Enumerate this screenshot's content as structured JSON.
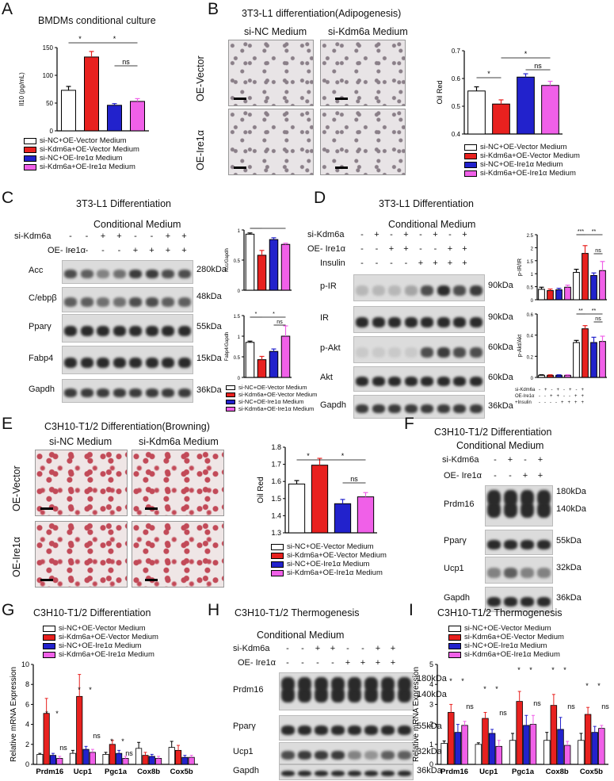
{
  "colors": {
    "white": "#ffffff",
    "red": "#e8211f",
    "blue": "#2222cc",
    "pink": "#f060e8"
  },
  "groups": [
    "si-NC+OE-Vector Medium",
    "si-Kdm6a+OE-Vector Medium",
    "si-NC+OE-Ire1α Medium",
    "si-Kdm6a+OE-Ire1α Medium"
  ],
  "panelA": {
    "letter": "A",
    "title": "BMDMs conditional culture",
    "ylabel": "Il10 (pg/mL)",
    "sig": [
      "*",
      "*",
      "ns"
    ]
  },
  "panelB": {
    "letter": "B",
    "title": "3T3-L1 differentiation(Adipogenesis)",
    "col1": "si-NC Medium",
    "col2": "si-Kdm6a Medium",
    "row1": "OE-Vector",
    "row2": "OE-Ire1α",
    "ylabel": "Oil Red",
    "sig": [
      "*",
      "*",
      "ns"
    ]
  },
  "panelC": {
    "letter": "C",
    "title": "3T3-L1 Differentiation",
    "subtitle": "Conditional Medium",
    "row_kdm": "si-Kdm6a",
    "row_ire": "OE- Ire1α",
    "kdm_signs": [
      "-",
      "-",
      "+",
      "+",
      "-",
      "-",
      "+",
      "+"
    ],
    "ire_signs": [
      "-",
      "-",
      "-",
      "-",
      "+",
      "+",
      "+",
      "+"
    ],
    "bands": [
      "Acc",
      "C/ebpβ",
      "Pparγ",
      "Fabp4",
      "Gapdh"
    ],
    "kda": [
      "280kDa",
      "48kDa",
      "55kDa",
      "15kDa",
      "36kDa"
    ],
    "ylabel1": "Acc/Gapdh",
    "ylabel2": "Fabp4/Gapdh"
  },
  "panelD": {
    "letter": "D",
    "title": "3T3-L1 Differentiation",
    "subtitle": "Conditional Medium",
    "row_kdm": "si-Kdm6a",
    "row_ire": "OE- Ire1α",
    "row_ins": "Insulin",
    "kdm_signs": [
      "-",
      "+",
      "-",
      "+",
      "-",
      "+",
      "-",
      "+"
    ],
    "ire_signs": [
      "-",
      "-",
      "+",
      "+",
      "-",
      "-",
      "+",
      "+"
    ],
    "ins_signs": [
      "-",
      "-",
      "-",
      "-",
      "+",
      "+",
      "+",
      "+"
    ],
    "bands": [
      "p-IR",
      "IR",
      "p-Akt",
      "Akt",
      "Gapdh"
    ],
    "kda": [
      "90kDa",
      "90kDa",
      "60kDa",
      "60kDa",
      "36kDa"
    ],
    "ylabel1": "p-IR/IR",
    "ylabel2": "p-Akt/Akt",
    "legend_rows": [
      "si-Kdm6a",
      "OE-Ire1α",
      "+Insulin"
    ]
  },
  "panelE": {
    "letter": "E",
    "title": "C3H10-T1/2 Differentiation(Browning)",
    "col1": "si-NC Medium",
    "col2": "si-Kdm6a Medium",
    "row1": "OE-Vector",
    "row2": "OE-Ire1α",
    "ylabel": "Oil Red",
    "sig": [
      "*",
      "*",
      "ns"
    ]
  },
  "panelF": {
    "letter": "F",
    "title": "C3H10-T1/2 Differentiation",
    "subtitle": "Conditional Medium",
    "row_kdm": "si-Kdm6a",
    "row_ire": "OE- Ire1α",
    "kdm_signs": [
      "-",
      "+",
      "-",
      "+"
    ],
    "ire_signs": [
      "-",
      "-",
      "+",
      "+"
    ],
    "bands": [
      "Prdm16",
      "Pparγ",
      "Ucp1",
      "Gapdh"
    ],
    "kda": [
      "180kDa",
      "140kDa",
      "55kDa",
      "32kDa",
      "36kDa"
    ]
  },
  "panelG": {
    "letter": "G",
    "title": "C3H10-T1/2 Differentiation",
    "ylabel": "Relative mRNA Expression",
    "genes": [
      "Prdm16",
      "Ucp1",
      "Pgc1a",
      "Cox8b",
      "Cox5b"
    ]
  },
  "panelH": {
    "letter": "H",
    "title": "C3H10-T1/2 Thermogenesis",
    "subtitle": "Conditional Medium",
    "row_kdm": "si-Kdm6a",
    "row_ire": "OE- Ire1α",
    "kdm_signs": [
      "-",
      "-",
      "+",
      "+",
      "-",
      "-",
      "+",
      "+"
    ],
    "ire_signs": [
      "-",
      "-",
      "-",
      "-",
      "+",
      "+",
      "+",
      "+"
    ],
    "bands": [
      "Prdm16",
      "Pparγ",
      "Ucp1",
      "Gapdh"
    ],
    "kda": [
      "180kDa",
      "140kDa",
      "55kDa",
      "32kDa",
      "36kDa"
    ]
  },
  "panelI": {
    "letter": "I",
    "title": "C3H10-T1/2 Thermogenesis",
    "ylabel": "Relative mRNA Expression",
    "genes": [
      "Prdm16",
      "Ucp1",
      "Pgc1a",
      "Cox8b",
      "Cox5b"
    ]
  },
  "chart_data": [
    {
      "id": "A",
      "type": "bar",
      "categories": [
        "si-NC+OE-Vector Medium",
        "si-Kdm6a+OE-Vector Medium",
        "si-NC+OE-Ire1α Medium",
        "si-Kdm6a+OE-Ire1α Medium"
      ],
      "values": [
        73,
        133,
        46,
        53
      ],
      "errors": [
        7,
        10,
        3,
        5
      ],
      "ylim": [
        0,
        150
      ],
      "yticks": [
        0,
        50,
        100,
        150
      ],
      "ylabel": "Il10 (pg/mL)"
    },
    {
      "id": "B",
      "type": "bar",
      "categories": [
        "si-NC+OE-Vector Medium",
        "si-Kdm6a+OE-Vector Medium",
        "si-NC+OE-Ire1α Medium",
        "si-Kdm6a+OE-Ire1α Medium"
      ],
      "values": [
        0.555,
        0.508,
        0.605,
        0.575
      ],
      "errors": [
        0.015,
        0.015,
        0.012,
        0.015
      ],
      "ylim": [
        0.4,
        0.7
      ],
      "yticks": [
        0.4,
        0.5,
        0.6,
        0.7
      ],
      "ylabel": "Oil Red"
    },
    {
      "id": "C1",
      "type": "bar",
      "values": [
        0.93,
        0.58,
        0.84,
        0.76
      ],
      "errors": [
        0.02,
        0.08,
        0.03,
        0.02
      ],
      "ylim": [
        0,
        1.0
      ],
      "yticks": [
        0.0,
        0.5,
        1.0
      ],
      "ylabel": "Acc/Gapdh"
    },
    {
      "id": "C2",
      "type": "bar",
      "values": [
        0.85,
        0.43,
        0.63,
        1.0
      ],
      "errors": [
        0.03,
        0.08,
        0.06,
        0.25
      ],
      "ylim": [
        0,
        1.5
      ],
      "yticks": [
        0.0,
        0.5,
        1.0,
        1.5
      ],
      "ylabel": "Fabp4/Gapdh"
    },
    {
      "id": "D1",
      "type": "bar",
      "values": [
        0.4,
        0.35,
        0.38,
        0.48,
        1.05,
        1.78,
        0.93,
        1.12
      ],
      "errors": [
        0.08,
        0.06,
        0.06,
        0.08,
        0.12,
        0.3,
        0.1,
        0.35
      ],
      "ylim": [
        0,
        2.5
      ],
      "yticks": [
        0.0,
        0.5,
        1.0,
        1.5,
        2.0,
        2.5
      ],
      "ylabel": "p-IR/IR"
    },
    {
      "id": "D2",
      "type": "bar",
      "values": [
        0.02,
        0.02,
        0.02,
        0.02,
        0.33,
        0.46,
        0.33,
        0.34
      ],
      "errors": [
        0.005,
        0.005,
        0.005,
        0.005,
        0.02,
        0.03,
        0.05,
        0.05
      ],
      "ylim": [
        0,
        0.6
      ],
      "yticks": [
        0.0,
        0.2,
        0.4,
        0.6
      ],
      "ylabel": "p-Akt/Akt"
    },
    {
      "id": "E",
      "type": "bar",
      "categories": [
        "si-NC+OE-Vector Medium",
        "si-Kdm6a+OE-Vector Medium",
        "si-NC+OE-Ire1α Medium",
        "si-Kdm6a+OE-Ire1α Medium"
      ],
      "values": [
        1.585,
        1.695,
        1.47,
        1.51
      ],
      "errors": [
        0.02,
        0.04,
        0.025,
        0.025
      ],
      "ylim": [
        1.3,
        1.8
      ],
      "yticks": [
        1.3,
        1.4,
        1.5,
        1.6,
        1.7,
        1.8
      ],
      "ylabel": "Oil Red"
    },
    {
      "id": "G",
      "type": "bar",
      "categories": [
        "Prdm16",
        "Ucp1",
        "Pgc1a",
        "Cox8b",
        "Cox5b"
      ],
      "series": [
        {
          "name": "si-NC+OE-Vector Medium",
          "values": [
            1.0,
            1.1,
            1.0,
            1.6,
            1.7
          ],
          "errors": [
            0.1,
            0.3,
            0.2,
            0.6,
            0.6
          ]
        },
        {
          "name": "si-Kdm6a+OE-Vector Medium",
          "values": [
            5.1,
            6.8,
            2.0,
            0.9,
            1.4
          ],
          "errors": [
            1.5,
            2.2,
            0.4,
            0.3,
            0.5
          ]
        },
        {
          "name": "si-NC+OE-Ire1α Medium",
          "values": [
            0.9,
            1.5,
            1.1,
            0.8,
            0.7
          ],
          "errors": [
            0.2,
            0.3,
            0.3,
            0.2,
            0.2
          ]
        },
        {
          "name": "si-Kdm6a+OE-Ire1α Medium",
          "values": [
            0.6,
            1.2,
            0.6,
            0.6,
            0.7
          ],
          "errors": [
            0.2,
            0.3,
            0.2,
            0.2,
            0.2
          ]
        }
      ],
      "ylim": [
        0,
        10
      ],
      "yticks": [
        0,
        2,
        4,
        6,
        8,
        10
      ],
      "ylabel": "Relative mRNA Expression"
    },
    {
      "id": "I",
      "type": "bar",
      "categories": [
        "Prdm16",
        "Ucp1",
        "Pgc1a",
        "Cox8b",
        "Cox5b"
      ],
      "series": [
        {
          "name": "si-NC+OE-Vector Medium",
          "values": [
            1.05,
            1.0,
            1.2,
            1.2,
            1.2
          ],
          "errors": [
            0.12,
            0.08,
            0.35,
            0.4,
            0.35
          ]
        },
        {
          "name": "si-Kdm6a+OE-Vector Medium",
          "values": [
            2.6,
            2.3,
            3.15,
            2.95,
            2.5
          ],
          "errors": [
            0.4,
            0.3,
            0.5,
            0.55,
            0.35
          ]
        },
        {
          "name": "si-NC+OE-Ire1α Medium",
          "values": [
            1.6,
            1.55,
            1.95,
            1.75,
            1.6
          ],
          "errors": [
            0.4,
            0.2,
            0.5,
            0.6,
            0.3
          ]
        },
        {
          "name": "si-Kdm6a+OE-Ire1α Medium",
          "values": [
            1.95,
            0.9,
            2.0,
            0.95,
            1.8
          ],
          "errors": [
            0.2,
            0.3,
            0.45,
            0.2,
            0.15
          ]
        }
      ],
      "ylim": [
        0,
        5
      ],
      "yticks": [
        0,
        1,
        2,
        3,
        4,
        5
      ],
      "ylabel": "Relative mRNA Expression"
    }
  ]
}
